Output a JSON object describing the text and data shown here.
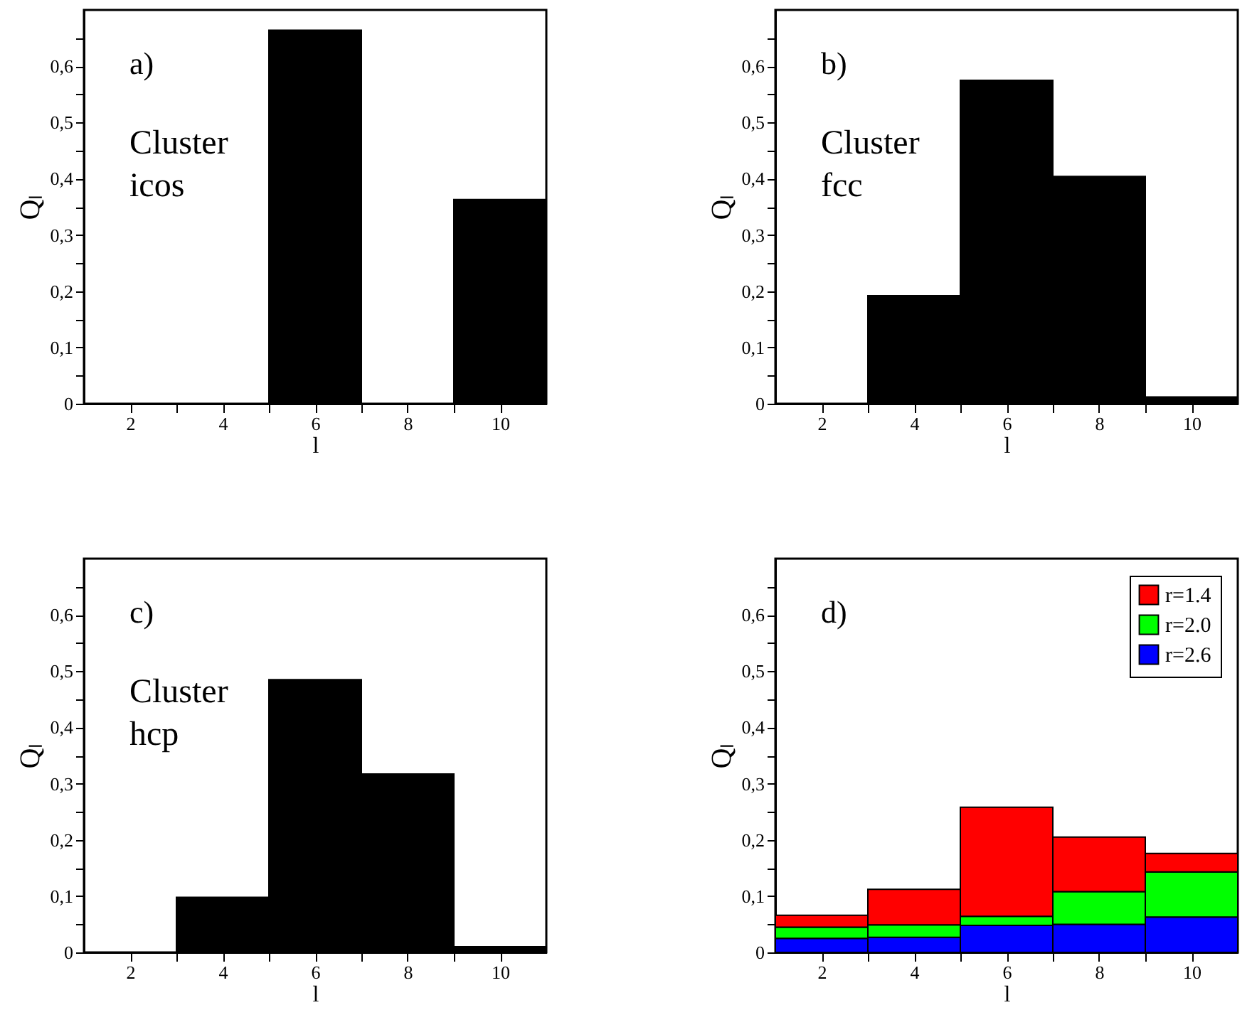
{
  "chart_data": [
    {
      "type": "bar",
      "xlabel": "l",
      "ylabel": "Qₗ",
      "annotations": [
        "a)",
        "Cluster\nicos"
      ],
      "x": [
        2,
        4,
        6,
        8,
        10
      ],
      "values": [
        0,
        0,
        0.664,
        0,
        0.363
      ],
      "color": "#000000",
      "xlim": [
        1,
        11
      ],
      "ylim": [
        0,
        0.7
      ],
      "xticks": [
        2,
        {
          "value": 3,
          "label": null
        },
        4,
        {
          "value": 5,
          "label": null
        },
        6,
        {
          "value": 7,
          "label": null
        },
        8,
        {
          "value": 9,
          "label": null
        },
        10
      ],
      "yticks": [
        {
          "value": 0,
          "label": "0"
        },
        {
          "value": 0.05,
          "label": null
        },
        {
          "value": 0.1,
          "label": "0,1"
        },
        {
          "value": 0.15,
          "label": null
        },
        {
          "value": 0.2,
          "label": "0,2"
        },
        {
          "value": 0.25,
          "label": null
        },
        {
          "value": 0.3,
          "label": "0,3"
        },
        {
          "value": 0.35,
          "label": null
        },
        {
          "value": 0.4,
          "label": "0,4"
        },
        {
          "value": 0.45,
          "label": null
        },
        {
          "value": 0.5,
          "label": "0,5"
        },
        {
          "value": 0.55,
          "label": null
        },
        {
          "value": 0.6,
          "label": "0,6"
        },
        {
          "value": 0.65,
          "label": null
        }
      ]
    },
    {
      "type": "bar",
      "xlabel": "l",
      "ylabel": "Qₗ",
      "annotations": [
        "b)",
        "Cluster\nfcc"
      ],
      "x": [
        2,
        4,
        6,
        8,
        10
      ],
      "values": [
        0,
        0.192,
        0.575,
        0.404,
        0.012
      ],
      "color": "#000000",
      "xlim": [
        1,
        11
      ],
      "ylim": [
        0,
        0.7
      ],
      "xticks": [
        2,
        {
          "value": 3,
          "label": null
        },
        4,
        {
          "value": 5,
          "label": null
        },
        6,
        {
          "value": 7,
          "label": null
        },
        8,
        {
          "value": 9,
          "label": null
        },
        10
      ],
      "yticks": [
        {
          "value": 0,
          "label": "0"
        },
        {
          "value": 0.05,
          "label": null
        },
        {
          "value": 0.1,
          "label": "0,1"
        },
        {
          "value": 0.15,
          "label": null
        },
        {
          "value": 0.2,
          "label": "0,2"
        },
        {
          "value": 0.25,
          "label": null
        },
        {
          "value": 0.3,
          "label": "0,3"
        },
        {
          "value": 0.35,
          "label": null
        },
        {
          "value": 0.4,
          "label": "0,4"
        },
        {
          "value": 0.45,
          "label": null
        },
        {
          "value": 0.5,
          "label": "0,5"
        },
        {
          "value": 0.55,
          "label": null
        },
        {
          "value": 0.6,
          "label": "0,6"
        },
        {
          "value": 0.65,
          "label": null
        }
      ]
    },
    {
      "type": "bar",
      "xlabel": "l",
      "ylabel": "Qₗ",
      "annotations": [
        "c)",
        "Cluster\nhcp"
      ],
      "x": [
        2,
        4,
        6,
        8,
        10
      ],
      "values": [
        0,
        0.098,
        0.485,
        0.317,
        0.01
      ],
      "color": "#000000",
      "xlim": [
        1,
        11
      ],
      "ylim": [
        0,
        0.7
      ],
      "xticks": [
        2,
        {
          "value": 3,
          "label": null
        },
        4,
        {
          "value": 5,
          "label": null
        },
        6,
        {
          "value": 7,
          "label": null
        },
        8,
        {
          "value": 9,
          "label": null
        },
        10
      ],
      "yticks": [
        {
          "value": 0,
          "label": "0"
        },
        {
          "value": 0.05,
          "label": null
        },
        {
          "value": 0.1,
          "label": "0,1"
        },
        {
          "value": 0.15,
          "label": null
        },
        {
          "value": 0.2,
          "label": "0,2"
        },
        {
          "value": 0.25,
          "label": null
        },
        {
          "value": 0.3,
          "label": "0,3"
        },
        {
          "value": 0.35,
          "label": null
        },
        {
          "value": 0.4,
          "label": "0,4"
        },
        {
          "value": 0.45,
          "label": null
        },
        {
          "value": 0.5,
          "label": "0,5"
        },
        {
          "value": 0.55,
          "label": null
        },
        {
          "value": 0.6,
          "label": "0,6"
        },
        {
          "value": 0.65,
          "label": null
        }
      ]
    },
    {
      "type": "bar",
      "xlabel": "l",
      "ylabel": "Qₗ",
      "annotations": [
        "d)"
      ],
      "x": [
        2,
        4,
        6,
        8,
        10
      ],
      "stacked": true,
      "legend": "top right",
      "series": [
        {
          "name": "r=2.6",
          "color": "#0000ff",
          "values": [
            0.025,
            0.027,
            0.048,
            0.05,
            0.063
          ]
        },
        {
          "name": "r=2.0",
          "color": "#00ff00",
          "values": [
            0.02,
            0.022,
            0.016,
            0.058,
            0.08
          ]
        },
        {
          "name": "r=1.4",
          "color": "#ff0000",
          "values": [
            0.021,
            0.063,
            0.194,
            0.097,
            0.033
          ]
        }
      ],
      "xlim": [
        1,
        11
      ],
      "ylim": [
        0,
        0.7
      ],
      "xticks": [
        2,
        {
          "value": 3,
          "label": null
        },
        4,
        {
          "value": 5,
          "label": null
        },
        6,
        {
          "value": 7,
          "label": null
        },
        8,
        {
          "value": 9,
          "label": null
        },
        10
      ],
      "yticks": [
        {
          "value": 0,
          "label": "0"
        },
        {
          "value": 0.05,
          "label": null
        },
        {
          "value": 0.1,
          "label": "0,1"
        },
        {
          "value": 0.15,
          "label": null
        },
        {
          "value": 0.2,
          "label": "0,2"
        },
        {
          "value": 0.25,
          "label": null
        },
        {
          "value": 0.3,
          "label": "0,3"
        },
        {
          "value": 0.35,
          "label": null
        },
        {
          "value": 0.4,
          "label": "0,4"
        },
        {
          "value": 0.45,
          "label": null
        },
        {
          "value": 0.5,
          "label": "0,5"
        },
        {
          "value": 0.55,
          "label": null
        },
        {
          "value": 0.6,
          "label": "0,6"
        },
        {
          "value": 0.65,
          "label": null
        }
      ]
    }
  ]
}
